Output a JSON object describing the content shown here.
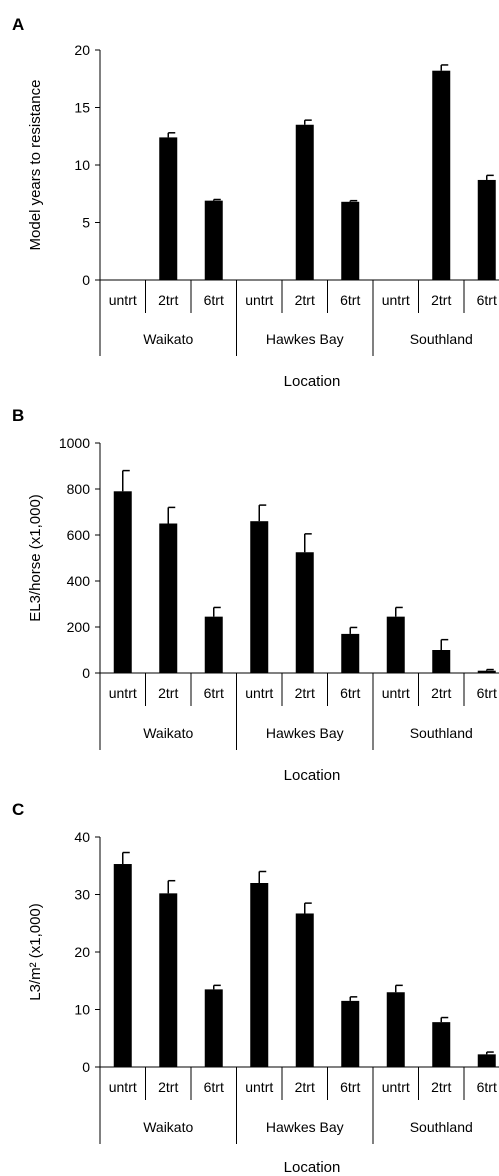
{
  "chart_data": [
    {
      "type": "bar",
      "panel": "A",
      "ylabel": "Model years to resistance",
      "xlabel": "Location",
      "ylim": [
        0,
        20
      ],
      "yticks": [
        0,
        5,
        10,
        15,
        20
      ],
      "groups": [
        "Waikato",
        "Hawkes Bay",
        "Southland"
      ],
      "categories": [
        "untrt",
        "2trt",
        "6trt"
      ],
      "values": [
        [
          0,
          12.4,
          6.9
        ],
        [
          0,
          13.5,
          6.8
        ],
        [
          0,
          18.2,
          8.7
        ]
      ],
      "errors": [
        [
          0,
          0.4,
          0.1
        ],
        [
          0,
          0.4,
          0.1
        ],
        [
          0,
          0.5,
          0.4
        ]
      ]
    },
    {
      "type": "bar",
      "panel": "B",
      "ylabel": "EL3/horse (x1,000)",
      "xlabel": "Location",
      "ylim": [
        0,
        1000
      ],
      "yticks": [
        0,
        200,
        400,
        600,
        800,
        1000
      ],
      "groups": [
        "Waikato",
        "Hawkes Bay",
        "Southland"
      ],
      "categories": [
        "untrt",
        "2trt",
        "6trt"
      ],
      "values": [
        [
          790,
          650,
          245
        ],
        [
          660,
          525,
          170
        ],
        [
          245,
          100,
          10
        ]
      ],
      "errors": [
        [
          90,
          70,
          40
        ],
        [
          70,
          80,
          28
        ],
        [
          40,
          45,
          5
        ]
      ]
    },
    {
      "type": "bar",
      "panel": "C",
      "ylabel": "L3/m² (x1,000)",
      "xlabel": "Location",
      "ylim": [
        0,
        40
      ],
      "yticks": [
        0,
        10,
        20,
        30,
        40
      ],
      "groups": [
        "Waikato",
        "Hawkes Bay",
        "Southland"
      ],
      "categories": [
        "untrt",
        "2trt",
        "6trt"
      ],
      "values": [
        [
          35.3,
          30.2,
          13.5
        ],
        [
          32.0,
          26.7,
          11.5
        ],
        [
          13.0,
          7.8,
          2.2
        ]
      ],
      "errors": [
        [
          2.0,
          2.2,
          0.7
        ],
        [
          2.0,
          1.8,
          0.7
        ],
        [
          1.2,
          0.8,
          0.4
        ]
      ]
    }
  ]
}
